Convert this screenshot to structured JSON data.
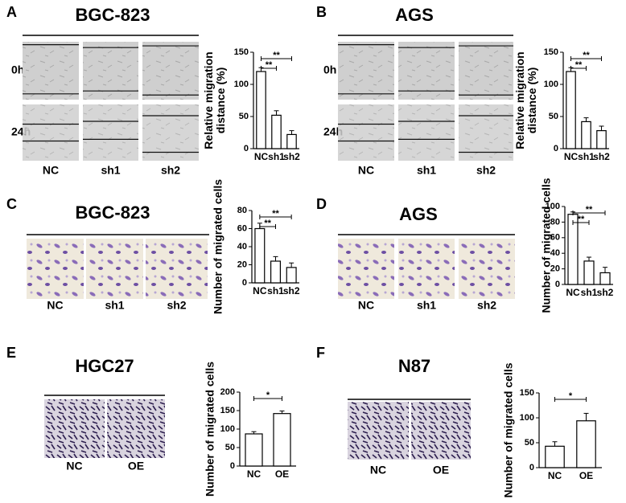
{
  "panels": [
    {
      "letter": "A",
      "title": "BGC-823",
      "rows": [
        "0h",
        "24h"
      ],
      "columns": [
        "NC",
        "sh1",
        "sh2"
      ]
    },
    {
      "letter": "B",
      "title": "AGS",
      "rows": [
        "0h",
        "24h"
      ],
      "columns": [
        "NC",
        "sh1",
        "sh2"
      ]
    },
    {
      "letter": "C",
      "title": "BGC-823",
      "columns": [
        "NC",
        "sh1",
        "sh2"
      ]
    },
    {
      "letter": "D",
      "title": "AGS",
      "columns": [
        "NC",
        "sh1",
        "sh2"
      ]
    },
    {
      "letter": "E",
      "title": "HGC27",
      "columns": [
        "NC",
        "OE"
      ]
    },
    {
      "letter": "F",
      "title": "N87",
      "columns": [
        "NC",
        "OE"
      ]
    }
  ],
  "chart_data": [
    {
      "type": "bar",
      "y_label": [
        "Relative migration",
        "distance (%)"
      ],
      "categories": [
        "NC",
        "sh1",
        "sh2"
      ],
      "values": [
        120,
        52,
        22
      ],
      "errors": [
        6,
        7,
        6
      ],
      "ylim": [
        0,
        150
      ],
      "yticks": [
        0,
        50,
        100,
        150
      ],
      "significance": [
        "**",
        "**"
      ],
      "color": "#ffffff"
    },
    {
      "type": "bar",
      "y_label": [
        "Relative migration",
        "distance (%)"
      ],
      "categories": [
        "NC",
        "sh1",
        "sh2"
      ],
      "values": [
        120,
        42,
        28
      ],
      "errors": [
        6,
        6,
        7
      ],
      "ylim": [
        0,
        150
      ],
      "yticks": [
        0,
        50,
        100,
        150
      ],
      "significance": [
        "**",
        "**"
      ],
      "color": "#ffffff"
    },
    {
      "type": "bar",
      "y_label": [
        "Number of migrated cells"
      ],
      "categories": [
        "NC",
        "sh1",
        "sh2"
      ],
      "values": [
        60,
        24,
        17
      ],
      "errors": [
        6,
        5,
        5
      ],
      "ylim": [
        0,
        80
      ],
      "yticks": [
        0,
        20,
        40,
        60,
        80
      ],
      "significance": [
        "**",
        "**"
      ],
      "color": "#ffffff"
    },
    {
      "type": "bar",
      "y_label": [
        "Number of migrated cells"
      ],
      "categories": [
        "NC",
        "sh1",
        "sh2"
      ],
      "values": [
        90,
        30,
        15
      ],
      "errors": [
        3,
        5,
        7
      ],
      "ylim": [
        0,
        100
      ],
      "yticks": [
        0,
        20,
        40,
        60,
        80,
        100
      ],
      "significance": [
        "**",
        "**"
      ],
      "color": "#ffffff"
    },
    {
      "type": "bar",
      "y_label": [
        "Number of migrated cells"
      ],
      "categories": [
        "NC",
        "OE"
      ],
      "values": [
        87,
        142
      ],
      "errors": [
        6,
        7
      ],
      "ylim": [
        0,
        200
      ],
      "yticks": [
        0,
        50,
        100,
        150,
        200
      ],
      "significance": [
        "*"
      ],
      "color": "#ffffff"
    },
    {
      "type": "bar",
      "y_label": [
        "Number of migrated cells"
      ],
      "categories": [
        "NC",
        "OE"
      ],
      "values": [
        43,
        94
      ],
      "errors": [
        9,
        15
      ],
      "ylim": [
        0,
        150
      ],
      "yticks": [
        0,
        50,
        100,
        150
      ],
      "significance": [
        "*"
      ],
      "color": "#ffffff"
    }
  ]
}
